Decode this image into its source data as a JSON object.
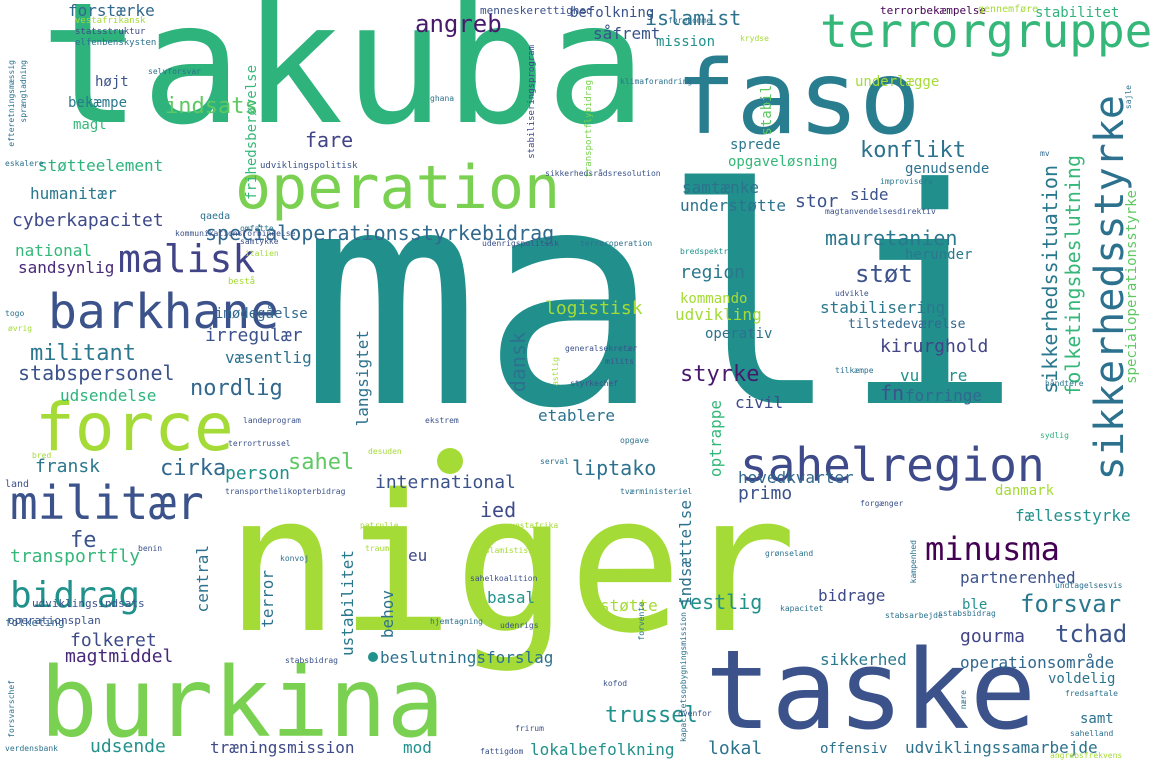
{
  "words": [
    {
      "text": "mali",
      "color": "#21908d"
    },
    {
      "text": "niger",
      "color": "#a5db36"
    },
    {
      "text": "takuba",
      "color": "#2eb37c"
    },
    {
      "text": "burkina",
      "color": "#7ad151"
    },
    {
      "text": "taske",
      "color": "#3b528b"
    },
    {
      "text": "faso",
      "color": "#287d8e"
    },
    {
      "text": "operation",
      "color": "#7ad151"
    },
    {
      "text": "force",
      "color": "#a5db36"
    },
    {
      "text": "terrorgruppe",
      "color": "#35b779"
    },
    {
      "text": "sikkerhedsstyrke",
      "color": "#2c728e"
    },
    {
      "text": "sahelregion",
      "color": "#3e4a89"
    },
    {
      "text": "barkhane",
      "color": "#3b528b"
    },
    {
      "text": "militær",
      "color": "#3b528b"
    },
    {
      "text": "malisk",
      "color": "#414487"
    },
    {
      "text": "bidrag",
      "color": "#21918c"
    },
    {
      "text": "minusma",
      "color": "#440154"
    },
    {
      "text": "specialoperationsstyrkebidrag",
      "color": "#31688e"
    },
    {
      "text": "folketingsbeslutning",
      "color": "#35b779"
    },
    {
      "text": "sikkerhedssituation",
      "color": "#2a788e"
    },
    {
      "text": "specialoperationsstyrke",
      "color": "#5ec962"
    },
    {
      "text": "militant",
      "color": "#2a788e"
    },
    {
      "text": "nordlig",
      "color": "#31688e"
    },
    {
      "text": "stabspersonel",
      "color": "#3b528b"
    },
    {
      "text": "cyberkapacitet",
      "color": "#3e4a89"
    },
    {
      "text": "humanitær",
      "color": "#2a788e"
    },
    {
      "text": "konflikt",
      "color": "#2c728e"
    },
    {
      "text": "mauretanien",
      "color": "#2a788e"
    },
    {
      "text": "international",
      "color": "#3b528b"
    },
    {
      "text": "cirka",
      "color": "#31688e"
    },
    {
      "text": "sahel",
      "color": "#5ec962"
    },
    {
      "text": "liptako",
      "color": "#2c728e"
    },
    {
      "text": "styrke",
      "color": "#481a6c"
    },
    {
      "text": "støt",
      "color": "#3b528b"
    },
    {
      "text": "forsvar",
      "color": "#2a788e"
    },
    {
      "text": "trussel",
      "color": "#21918c"
    },
    {
      "text": "tchad",
      "color": "#3b528b"
    },
    {
      "text": "gourma",
      "color": "#414487"
    },
    {
      "text": "fe",
      "color": "#3b528b"
    },
    {
      "text": "ied",
      "color": "#3e4a89"
    },
    {
      "text": "angreb",
      "color": "#481a6c"
    },
    {
      "text": "islamist",
      "color": "#2c728e"
    },
    {
      "text": "indsats",
      "color": "#5ec962"
    },
    {
      "text": "fare",
      "color": "#414487"
    },
    {
      "text": "dansk",
      "color": "#2c728e"
    },
    {
      "text": "kirurghold",
      "color": "#414487"
    },
    {
      "text": "region",
      "color": "#2a788e"
    },
    {
      "text": "logistisk",
      "color": "#a5db36"
    },
    {
      "text": "udsende",
      "color": "#21918c"
    },
    {
      "text": "folkeret",
      "color": "#3e4a89"
    },
    {
      "text": "fransk",
      "color": "#2a788e"
    },
    {
      "text": "transportfly",
      "color": "#35b779"
    },
    {
      "text": "magtmiddel",
      "color": "#482878"
    },
    {
      "text": "beslutningsforslag",
      "color": "#2c728e"
    },
    {
      "text": "operationsområde",
      "color": "#31688e"
    },
    {
      "text": "udviklingssamarbejde",
      "color": "#2c728e"
    },
    {
      "text": "lokalbefolkning",
      "color": "#21918c"
    },
    {
      "text": "træningsmission",
      "color": "#3e4a89"
    },
    {
      "text": "forstærke",
      "color": "#31688e"
    },
    {
      "text": "sandsynlig",
      "color": "#482878"
    },
    {
      "text": "national",
      "color": "#35b779"
    },
    {
      "text": "irregulær",
      "color": "#3b528b"
    },
    {
      "text": "væsentlig",
      "color": "#2c728e"
    },
    {
      "text": "udsendelse",
      "color": "#2eb37c"
    },
    {
      "text": "imødegåelse",
      "color": "#31688e"
    },
    {
      "text": "person",
      "color": "#21918c"
    },
    {
      "text": "samtænke",
      "color": "#2c728e"
    },
    {
      "text": "understøtte",
      "color": "#2c728e"
    },
    {
      "text": "stor",
      "color": "#3b528b"
    },
    {
      "text": "side",
      "color": "#3b528b"
    },
    {
      "text": "herunder",
      "color": "#2a788e"
    },
    {
      "text": "genudsende",
      "color": "#2c728e"
    },
    {
      "text": "opgaveløsning",
      "color": "#35b779"
    },
    {
      "text": "sprede",
      "color": "#2a788e"
    },
    {
      "text": "stabil",
      "color": "#5ec962"
    },
    {
      "text": "kommando",
      "color": "#a5db36"
    },
    {
      "text": "udvikling",
      "color": "#a5db36"
    },
    {
      "text": "operativ",
      "color": "#2c728e"
    },
    {
      "text": "stabilisering",
      "color": "#2a788e"
    },
    {
      "text": "tilstedeværelse",
      "color": "#31688e"
    },
    {
      "text": "vurdere",
      "color": "#21918c"
    },
    {
      "text": "forringe",
      "color": "#31688e"
    },
    {
      "text": "civil",
      "color": "#3e4a89"
    },
    {
      "text": "fn",
      "color": "#3b528b"
    },
    {
      "text": "etablere",
      "color": "#2c728e"
    },
    {
      "text": "langsigtet",
      "color": "#2c728e"
    },
    {
      "text": "optrappe",
      "color": "#35b779"
    },
    {
      "text": "primo",
      "color": "#3b528b"
    },
    {
      "text": "hovedkvarter",
      "color": "#31688e"
    },
    {
      "text": "danmark",
      "color": "#a5db36"
    },
    {
      "text": "fællesstyrke",
      "color": "#21918c"
    },
    {
      "text": "partnerenhed",
      "color": "#3b528b"
    },
    {
      "text": "vestlig",
      "color": "#21918c"
    },
    {
      "text": "bidrage",
      "color": "#3e4a89"
    },
    {
      "text": "ble",
      "color": "#21918c"
    },
    {
      "text": "sikkerhed",
      "color": "#2a788e"
    },
    {
      "text": "voldelig",
      "color": "#2c728e"
    },
    {
      "text": "samt",
      "color": "#2c728e"
    },
    {
      "text": "offensiv",
      "color": "#2c728e"
    },
    {
      "text": "lokal",
      "color": "#2c728e"
    },
    {
      "text": "mod",
      "color": "#21918c"
    },
    {
      "text": "basal",
      "color": "#21918c"
    },
    {
      "text": "indsættelse",
      "color": "#2c728e"
    },
    {
      "text": "støtte",
      "color": "#a5db36"
    },
    {
      "text": "eu",
      "color": "#3e4a89"
    },
    {
      "text": "behov",
      "color": "#2c728e"
    },
    {
      "text": "ustabilitet",
      "color": "#2a788e"
    },
    {
      "text": "terror",
      "color": "#2c728e"
    },
    {
      "text": "central",
      "color": "#2c728e"
    },
    {
      "text": "højt",
      "color": "#3b528b"
    },
    {
      "text": "bekæmpe",
      "color": "#2a788e"
    },
    {
      "text": "magt",
      "color": "#35b779"
    },
    {
      "text": "støtteelement",
      "color": "#2eb37c"
    },
    {
      "text": "befolkning",
      "color": "#3b528b"
    },
    {
      "text": "såfremt",
      "color": "#3b528b"
    },
    {
      "text": "mission",
      "color": "#21918c"
    },
    {
      "text": "stabilitet",
      "color": "#2eb37c"
    },
    {
      "text": "underlægge",
      "color": "#a5db36"
    },
    {
      "text": "frihedsberøvelse",
      "color": "#35b779"
    },
    {
      "text": "menneskerettighed",
      "color": "#3b528b"
    },
    {
      "text": "terrorbekæmpelse",
      "color": "#440154"
    },
    {
      "text": "gennemføre",
      "color": "#a5db36"
    },
    {
      "text": "vestafrikansk",
      "color": "#a5db36"
    },
    {
      "text": "statsstruktur",
      "color": "#3e4a89"
    },
    {
      "text": "elfenbenskysten",
      "color": "#2c728e"
    },
    {
      "text": "selvforsvar",
      "color": "#2c728e"
    },
    {
      "text": "stabiliseringsprogram",
      "color": "#3e4a89"
    },
    {
      "text": "transportflybidrag",
      "color": "#7ad151"
    },
    {
      "text": "klimaforandring",
      "color": "#2c728e"
    },
    {
      "text": "ghana",
      "color": "#2c728e"
    },
    {
      "text": "forekomme",
      "color": "#2c728e"
    },
    {
      "text": "krydse",
      "color": "#a5db36"
    },
    {
      "text": "udviklingspolitisk",
      "color": "#3b528b"
    },
    {
      "text": "sikkerhedsrådsresolution",
      "color": "#3b528b"
    },
    {
      "text": "improvisere",
      "color": "#2a788e"
    },
    {
      "text": "mv",
      "color": "#31688e"
    },
    {
      "text": "magtanvendelsesdirektiv",
      "color": "#3b528b"
    },
    {
      "text": "kommunikationsforbindelse",
      "color": "#3b528b"
    },
    {
      "text": "qaeda",
      "color": "#2c728e"
    },
    {
      "text": "omfatte",
      "color": "#2c728e"
    },
    {
      "text": "samtykke",
      "color": "#3b528b"
    },
    {
      "text": "italien",
      "color": "#a5db36"
    },
    {
      "text": "udenrigspolitisk",
      "color": "#3b528b"
    },
    {
      "text": "terroroperation",
      "color": "#2c728e"
    },
    {
      "text": "bredspektret",
      "color": "#21918c"
    },
    {
      "text": "bestå",
      "color": "#a5db36"
    },
    {
      "text": "udvikle",
      "color": "#3b528b"
    },
    {
      "text": "generalsekretær",
      "color": "#3b528b"
    },
    {
      "text": "milits",
      "color": "#3b528b"
    },
    {
      "text": "styrkechef",
      "color": "#3b528b"
    },
    {
      "text": "tilkæmpe",
      "color": "#2c728e"
    },
    {
      "text": "håndtere",
      "color": "#2c728e"
    },
    {
      "text": "landeprogram",
      "color": "#3b528b"
    },
    {
      "text": "ekstrem",
      "color": "#3b528b"
    },
    {
      "text": "terrortrussel",
      "color": "#3b528b"
    },
    {
      "text": "opgave",
      "color": "#2c728e"
    },
    {
      "text": "sydlig",
      "color": "#2eb37c"
    },
    {
      "text": "desuden",
      "color": "#a5db36"
    },
    {
      "text": "serval",
      "color": "#2c728e"
    },
    {
      "text": "tværministeriel",
      "color": "#2c728e"
    },
    {
      "text": "forgænger",
      "color": "#3b528b"
    },
    {
      "text": "transporthelikopterbidrag",
      "color": "#3b528b"
    },
    {
      "text": "patrulje",
      "color": "#a5db36"
    },
    {
      "text": "vestafrika",
      "color": "#a5db36"
    },
    {
      "text": "islamistisk",
      "color": "#a5db36"
    },
    {
      "text": "grønseland",
      "color": "#2c728e"
    },
    {
      "text": "traume",
      "color": "#a5db36"
    },
    {
      "text": "konvoj",
      "color": "#2c728e"
    },
    {
      "text": "sahelkoalition",
      "color": "#3b528b"
    },
    {
      "text": "kampenhed",
      "color": "#2c728e"
    },
    {
      "text": "undtagelsesvis",
      "color": "#2c728e"
    },
    {
      "text": "kapacitet",
      "color": "#2c728e"
    },
    {
      "text": "stabsarbejde",
      "color": "#2c728e"
    },
    {
      "text": "kapacitetsopbygningsmission",
      "color": "#2c728e"
    },
    {
      "text": "forvente",
      "color": "#2c728e"
    },
    {
      "text": "hjemtagning",
      "color": "#2c728e"
    },
    {
      "text": "udenrigs",
      "color": "#3b528b"
    },
    {
      "text": "stabsbidrag",
      "color": "#3b528b"
    },
    {
      "text": "kofod",
      "color": "#3b528b"
    },
    {
      "text": "frirum",
      "color": "#3b528b"
    },
    {
      "text": "fattigdom",
      "color": "#3b528b"
    },
    {
      "text": "ovenfor",
      "color": "#3b528b"
    },
    {
      "text": "fredsaftale",
      "color": "#2c728e"
    },
    {
      "text": "sahelland",
      "color": "#2c728e"
    },
    {
      "text": "angrebsfrekvens",
      "color": "#a5db36"
    },
    {
      "text": "nære",
      "color": "#2c728e"
    },
    {
      "text": "togo",
      "color": "#2c728e"
    },
    {
      "text": "øvrig",
      "color": "#a5db36"
    },
    {
      "text": "land",
      "color": "#3b528b"
    },
    {
      "text": "bred",
      "color": "#a5db36"
    },
    {
      "text": "folketing",
      "color": "#31688e"
    },
    {
      "text": "benin",
      "color": "#3b528b"
    },
    {
      "text": "udviklingsindsats",
      "color": "#3b528b"
    },
    {
      "text": "operationsplan",
      "color": "#3b528b"
    },
    {
      "text": "forsvarschef",
      "color": "#2c728e"
    },
    {
      "text": "verdensbank",
      "color": "#2c728e"
    },
    {
      "text": "eskalere",
      "color": "#2c728e"
    },
    {
      "text": "efteretningsmæssig",
      "color": "#2c728e"
    },
    {
      "text": "sprængladning",
      "color": "#2c728e"
    },
    {
      "text": "sajle",
      "color": "#2c728e"
    },
    {
      "text": "sstabsbidrag",
      "color": "#2c728e"
    },
    {
      "text": "astlig",
      "color": "#a5db36"
    }
  ]
}
